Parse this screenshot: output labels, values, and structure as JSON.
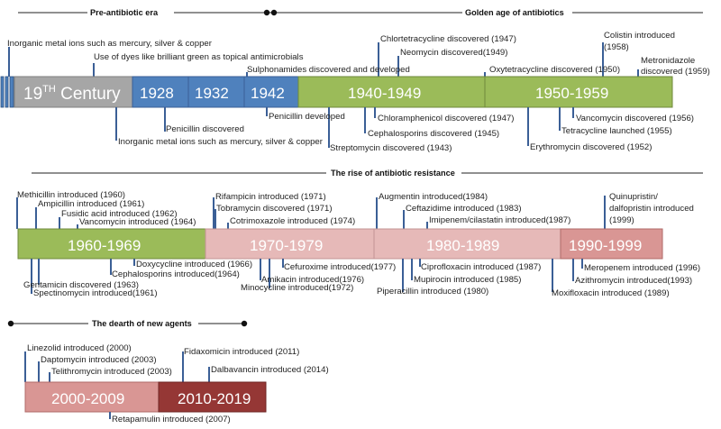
{
  "headers": {
    "pre_antibiotic": "Pre-antibiotic era",
    "golden_age": "Golden age of antibiotics",
    "resistance": "The rise of antibiotic resistance",
    "dearth": "The dearth of new agents"
  },
  "row1": {
    "seg_19th_main": "19",
    "seg_19th_sup": "TH",
    "seg_19th_rest": " Century",
    "seg_1928": "1928",
    "seg_1932": "1932",
    "seg_1942": "1942",
    "seg_1940s": "1940-1949",
    "seg_1950s": "1950-1959",
    "above": [
      "Inorganic metal ions such as mercury, silver & copper",
      "Use of dyes like brilliant green as topical antimicrobials",
      "Sulphonamides discovered and developed",
      "Chlortetracycline discovered  (1947)",
      "Neomycin discovered(1949)",
      "Oxytetracycline discovered (1950)",
      "Colistin  introduced",
      "(1958)",
      "Metronidazole",
      "discovered (1959)"
    ],
    "below": [
      "Penicillin discovered",
      "Inorganic metal ions such as mercury, silver & copper",
      "Penicillin developed",
      "Chloramphenicol discovered (1947)",
      "Cephalosporins discovered (1945)",
      "Streptomycin discovered (1943)",
      "Vancomycin discovered (1956)",
      "Tetracycline launched (1955)",
      "Erythromycin discovered (1952)"
    ]
  },
  "row2": {
    "seg_1960s": "1960-1969",
    "seg_1970s": "1970-1979",
    "seg_1980s": "1980-1989",
    "seg_1990s": "1990-1999",
    "above": [
      "Methicillin introduced (1960)",
      "Ampicillin introduced (1961)",
      "Fusidic acid introduced (1962)",
      "Vancomycin introduced (1964)",
      "Rifampicin introduced (1971)",
      "Tobramycin discovered (1971)",
      "Cotrimoxazole introduced (1974)",
      "Augmentin introduced(1984)",
      "Ceftazidime introduced (1983)",
      "Imipenem/cilastatin introduced(1987)",
      "Quinupristin/",
      "dalfopristin introduced",
      "(1999)"
    ],
    "below": [
      "Doxycycline introduced (1966)",
      "Cephalosporins introduced(1964)",
      "Gentamicin discovered (1963)",
      "Spectinomycin introduced(1961)",
      "Cefuroxime introduced(1977)",
      "Amikacin introduced(1976)",
      "Minocycline introduced(1972)",
      "Ciprofloxacin introduced (1987)",
      "Mupirocin introduced (1985)",
      "Piperacillin introduced (1980)",
      "Meropenem introduced (1996)",
      "Azithromycin introduced(1993)",
      "Moxifloxacin introduced (1989)"
    ]
  },
  "row3": {
    "seg_2000s": "2000-2009",
    "seg_2010s": "2010-2019",
    "above": [
      "Linezolid introduced (2000)",
      "Daptomycin introduced (2003)",
      "Telithromycin introduced (2003)",
      "Fidaxomicin introduced (2011)",
      "Dalbavancin introduced (2014)"
    ],
    "below": [
      "Retapamulin introduced (2007)"
    ]
  },
  "colors": {
    "grey": "#a6a6a6",
    "blue": "#4f81bd",
    "green": "#9bbb59",
    "pink": "#e6b9b8",
    "rose": "#d99694",
    "dark_red": "#953735",
    "tick": "#3b5f96",
    "border": "#7f7f7f"
  }
}
